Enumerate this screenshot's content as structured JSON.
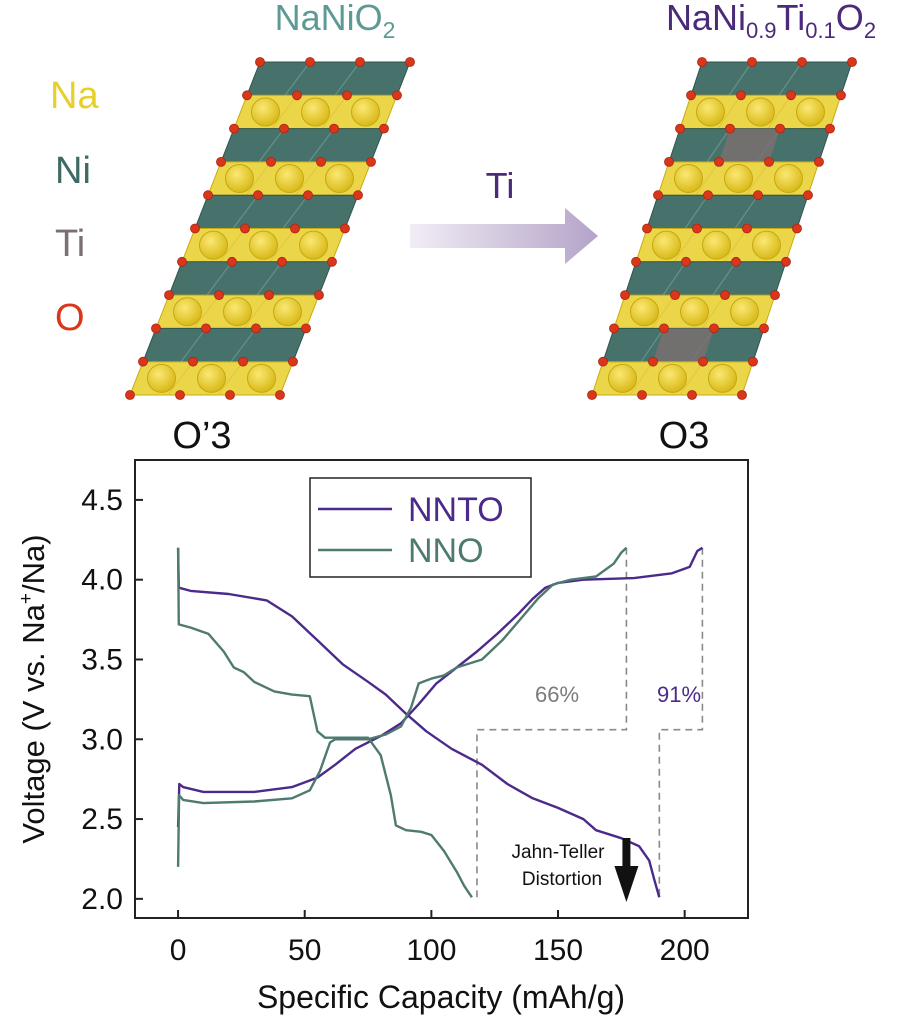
{
  "top": {
    "left_formula": {
      "main": "NaNiO",
      "sub": "2"
    },
    "right_formula": {
      "p1": "NaNi",
      "s1": "0.9",
      "p2": "Ti",
      "s2": "0.1",
      "p3": "O",
      "s3": "2"
    },
    "legend": [
      {
        "label": "Na",
        "color": "#e8cf2a"
      },
      {
        "label": "Ni",
        "color": "#3d6a63"
      },
      {
        "label": "Ti",
        "color": "#7a7070"
      },
      {
        "label": "O",
        "color": "#d9361c"
      }
    ],
    "arrow_label": "Ti",
    "left_phase": "O’3",
    "right_phase": "O3",
    "colors": {
      "formula_left": "#5e9a94",
      "formula_right": "#4b2a7a",
      "arrow": "#c9bdd6",
      "arrow_text": "#4b2a7a"
    }
  },
  "chart_data": {
    "type": "line",
    "xlabel": "Specific Capacity (mAh/g)",
    "ylabel": {
      "pre": "Voltage (V vs. Na",
      "sup": "+",
      "post": "/Na)"
    },
    "xlim": [
      -17,
      225
    ],
    "ylim": [
      1.88,
      4.75
    ],
    "xticks": [
      "0",
      "50",
      "100",
      "150",
      "200"
    ],
    "xtick_values": [
      0,
      50,
      100,
      150,
      200
    ],
    "yticks": [
      "2.0",
      "2.5",
      "3.0",
      "3.5",
      "4.0",
      "4.5"
    ],
    "ytick_values": [
      2.0,
      2.5,
      3.0,
      3.5,
      4.0,
      4.5
    ],
    "legend_position": "top-center",
    "series": [
      {
        "name": "NNTO",
        "color": "#4b2a8a",
        "charge": [
          [
            0,
            2.45
          ],
          [
            0.5,
            2.72
          ],
          [
            2,
            2.7
          ],
          [
            10,
            2.67
          ],
          [
            30,
            2.67
          ],
          [
            45,
            2.7
          ],
          [
            55,
            2.76
          ],
          [
            62,
            2.84
          ],
          [
            70,
            2.94
          ],
          [
            80,
            3.02
          ],
          [
            88,
            3.1
          ],
          [
            95,
            3.22
          ],
          [
            102,
            3.35
          ],
          [
            110,
            3.45
          ],
          [
            118,
            3.55
          ],
          [
            126,
            3.66
          ],
          [
            134,
            3.78
          ],
          [
            140,
            3.88
          ],
          [
            145,
            3.95
          ],
          [
            150,
            3.98
          ],
          [
            160,
            4.0
          ],
          [
            180,
            4.01
          ],
          [
            195,
            4.04
          ],
          [
            202,
            4.08
          ],
          [
            205,
            4.18
          ],
          [
            207,
            4.2
          ]
        ],
        "discharge": [
          [
            0,
            4.2
          ],
          [
            0.3,
            3.95
          ],
          [
            5,
            3.93
          ],
          [
            20,
            3.91
          ],
          [
            35,
            3.87
          ],
          [
            45,
            3.77
          ],
          [
            55,
            3.62
          ],
          [
            65,
            3.47
          ],
          [
            75,
            3.36
          ],
          [
            82,
            3.28
          ],
          [
            90,
            3.16
          ],
          [
            98,
            3.05
          ],
          [
            108,
            2.94
          ],
          [
            120,
            2.84
          ],
          [
            130,
            2.72
          ],
          [
            140,
            2.63
          ],
          [
            150,
            2.57
          ],
          [
            160,
            2.5
          ],
          [
            165,
            2.43
          ],
          [
            175,
            2.38
          ],
          [
            182,
            2.33
          ],
          [
            186,
            2.24
          ],
          [
            188,
            2.12
          ],
          [
            190,
            2.01
          ]
        ],
        "capacity_retention": "91%"
      },
      {
        "name": "NNO",
        "color": "#4e7a70",
        "charge": [
          [
            0,
            2.2
          ],
          [
            0.4,
            2.65
          ],
          [
            2,
            2.62
          ],
          [
            10,
            2.6
          ],
          [
            30,
            2.61
          ],
          [
            45,
            2.63
          ],
          [
            52,
            2.68
          ],
          [
            56,
            2.8
          ],
          [
            60,
            2.98
          ],
          [
            62,
            3.0
          ],
          [
            75,
            3.0
          ],
          [
            82,
            3.03
          ],
          [
            88,
            3.08
          ],
          [
            92,
            3.2
          ],
          [
            95,
            3.35
          ],
          [
            100,
            3.38
          ],
          [
            105,
            3.4
          ],
          [
            110,
            3.45
          ],
          [
            120,
            3.5
          ],
          [
            128,
            3.62
          ],
          [
            135,
            3.75
          ],
          [
            142,
            3.88
          ],
          [
            148,
            3.97
          ],
          [
            155,
            4.0
          ],
          [
            165,
            4.02
          ],
          [
            172,
            4.1
          ],
          [
            175,
            4.17
          ],
          [
            177,
            4.2
          ]
        ],
        "discharge": [
          [
            0,
            4.2
          ],
          [
            0.3,
            3.72
          ],
          [
            5,
            3.7
          ],
          [
            12,
            3.66
          ],
          [
            18,
            3.55
          ],
          [
            22,
            3.45
          ],
          [
            26,
            3.42
          ],
          [
            30,
            3.36
          ],
          [
            38,
            3.3
          ],
          [
            45,
            3.28
          ],
          [
            52,
            3.27
          ],
          [
            55,
            3.05
          ],
          [
            58,
            3.01
          ],
          [
            75,
            3.01
          ],
          [
            80,
            2.9
          ],
          [
            84,
            2.65
          ],
          [
            86,
            2.46
          ],
          [
            90,
            2.43
          ],
          [
            96,
            2.42
          ],
          [
            100,
            2.4
          ],
          [
            105,
            2.3
          ],
          [
            110,
            2.17
          ],
          [
            113,
            2.08
          ],
          [
            116,
            2.01
          ]
        ],
        "capacity_retention": "66%"
      }
    ],
    "annotations": {
      "pct_66": "66%",
      "pct_91": "91%",
      "jt_line1": "Jahn-Teller",
      "jt_line2": "Distortion"
    },
    "guides": {
      "nno_x_end": 177,
      "nno_x_start": 118,
      "nnto_x_end": 207,
      "nnto_x_start": 190,
      "y_top": 4.2,
      "y_step": 3.06,
      "y_bottom": 2.01,
      "arrow_x": 177
    }
  }
}
